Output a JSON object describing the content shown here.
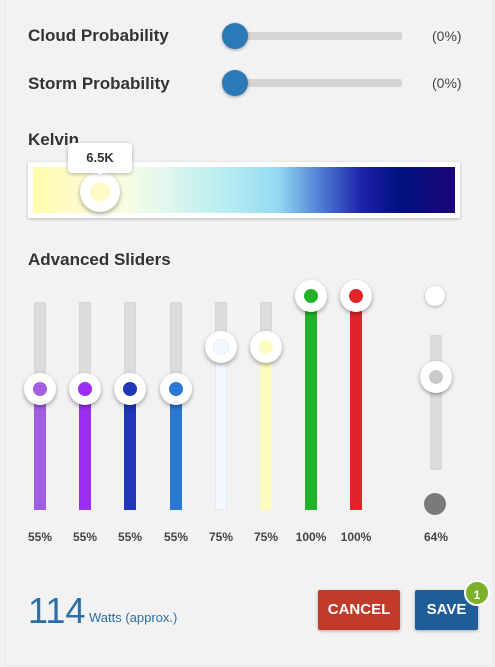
{
  "weather": {
    "cloud": {
      "label": "Cloud Probability",
      "value_text": "(0%)",
      "value": 0
    },
    "storm": {
      "label": "Storm Probability",
      "value_text": "(0%)",
      "value": 0
    }
  },
  "kelvin": {
    "label": "Kelvin",
    "tooltip": "6.5K"
  },
  "advanced": {
    "label": "Advanced Sliders",
    "channels": [
      {
        "percent": "55%",
        "value": 0.55,
        "color": "#a25ee0"
      },
      {
        "percent": "55%",
        "value": 0.55,
        "color": "#9b2ef2"
      },
      {
        "percent": "55%",
        "value": 0.55,
        "color": "#1f36b8"
      },
      {
        "percent": "55%",
        "value": 0.55,
        "color": "#2a78d1"
      },
      {
        "percent": "75%",
        "value": 0.75,
        "color": "#f3f9ff"
      },
      {
        "percent": "75%",
        "value": 0.75,
        "color": "#fdfcc0"
      },
      {
        "percent": "100%",
        "value": 1.0,
        "color": "#25b02a"
      },
      {
        "percent": "100%",
        "value": 1.0,
        "color": "#e0242a"
      }
    ],
    "master": {
      "percent": "64%",
      "value": 0.64
    }
  },
  "footer": {
    "watts_value": "114",
    "watts_unit": "Watts (approx.)",
    "cancel_label": "CANCEL",
    "save_label": "SAVE",
    "save_badge": "1"
  }
}
